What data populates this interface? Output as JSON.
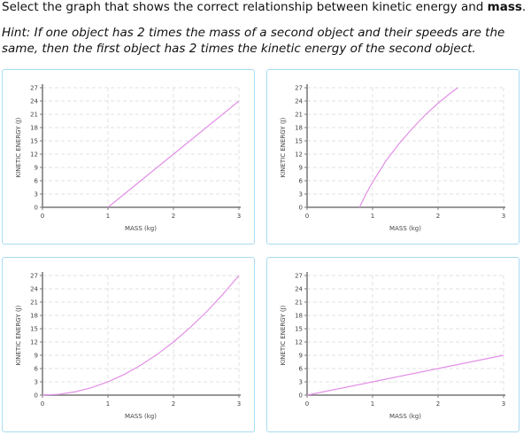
{
  "question": [
    "Select the graph that shows the correct relationship between kinetic energy and",
    "mass",
    "."
  ],
  "hint": "Hint: If one object has 2 times the mass of a second object and their speeds are the same, then the first object has 2 times the kinetic energy of the second object.",
  "chart_data": [
    {
      "type": "line",
      "x_label": "MASS (kg)",
      "y_label": "KINETIC ENERGY (J)",
      "color": "#e28fe6",
      "x": [
        1,
        2,
        3
      ],
      "values": [
        0,
        12,
        24
      ],
      "xlim": [
        0,
        3
      ],
      "ylim": [
        0,
        27
      ],
      "xticks": [
        0,
        1,
        2,
        3
      ],
      "yticks": [
        0,
        3,
        6,
        9,
        12,
        15,
        18,
        21,
        24,
        27
      ],
      "grid": true
    },
    {
      "type": "line",
      "x_label": "MASS (kg)",
      "y_label": "KINETIC ENERGY (J)",
      "color": "#e28fe6",
      "x": [
        0.8,
        0.9,
        1,
        1.2,
        1.4,
        1.6,
        1.8,
        2,
        2.2,
        2.3
      ],
      "values": [
        0,
        3,
        5.7,
        10.4,
        14.3,
        17.7,
        20.8,
        23.5,
        25.9,
        27
      ],
      "xlim": [
        0,
        3
      ],
      "ylim": [
        0,
        27
      ],
      "xticks": [
        0,
        1,
        2,
        3
      ],
      "yticks": [
        0,
        3,
        6,
        9,
        12,
        15,
        18,
        21,
        24,
        27
      ],
      "grid": true
    },
    {
      "type": "line",
      "x_label": "MASS (kg)",
      "y_label": "KINETIC ENERGY (J)",
      "color": "#e28fe6",
      "x": [
        0,
        0.25,
        0.5,
        0.75,
        1,
        1.25,
        1.5,
        1.75,
        2,
        2.25,
        2.5,
        2.75,
        3
      ],
      "values": [
        0,
        0.19,
        0.75,
        1.69,
        3,
        4.69,
        6.75,
        9.19,
        12,
        15.19,
        18.75,
        22.69,
        27
      ],
      "xlim": [
        0,
        3
      ],
      "ylim": [
        0,
        27
      ],
      "xticks": [
        0,
        1,
        2,
        3
      ],
      "yticks": [
        0,
        3,
        6,
        9,
        12,
        15,
        18,
        21,
        24,
        27
      ],
      "grid": true
    },
    {
      "type": "line",
      "x_label": "MASS (kg)",
      "y_label": "KINETIC ENERGY (J)",
      "color": "#e28fe6",
      "x": [
        0,
        3
      ],
      "values": [
        0,
        9
      ],
      "xlim": [
        0,
        3
      ],
      "ylim": [
        0,
        27
      ],
      "xticks": [
        0,
        1,
        2,
        3
      ],
      "yticks": [
        0,
        3,
        6,
        9,
        12,
        15,
        18,
        21,
        24,
        27
      ],
      "grid": true
    }
  ]
}
